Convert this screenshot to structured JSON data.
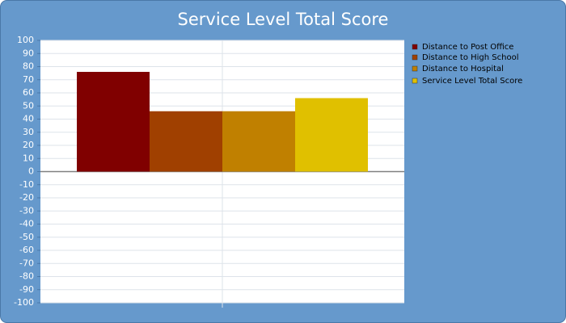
{
  "chart_data": {
    "type": "bar",
    "title": "Service Level Total Score",
    "categories": [
      null
    ],
    "series": [
      {
        "name": "Distance to Post Office",
        "color": "#800000",
        "values": [
          76
        ]
      },
      {
        "name": "Distance to High School",
        "color": "#a04000",
        "values": [
          46
        ]
      },
      {
        "name": "Distance to Hospital",
        "color": "#c08000",
        "values": [
          46
        ]
      },
      {
        "name": "Service Level Total Score",
        "color": "#e0c000",
        "values": [
          56
        ]
      }
    ],
    "ylim": [
      -100,
      100
    ],
    "yticks": [
      -100,
      -90,
      -80,
      -70,
      -60,
      -50,
      -40,
      -30,
      -20,
      -10,
      0,
      10,
      20,
      30,
      40,
      50,
      60,
      70,
      80,
      90,
      100
    ],
    "grid": true,
    "legend": "right"
  }
}
